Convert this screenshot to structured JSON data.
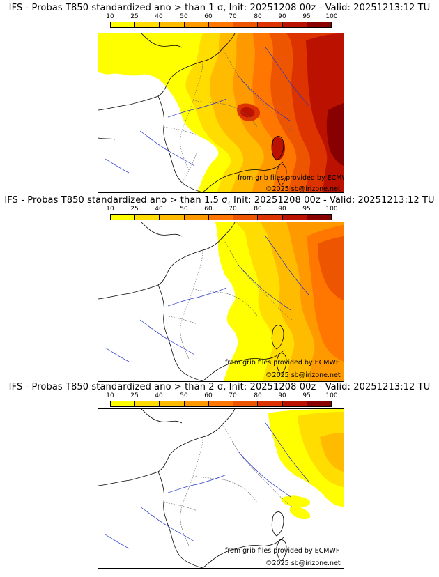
{
  "colors": {
    "levels": [
      "#ffff00",
      "#ffdd00",
      "#ffbb00",
      "#ff9900",
      "#ff7700",
      "#ee5500",
      "#dd3300",
      "#bb1100",
      "#880000",
      "#550000"
    ]
  },
  "panels": [
    {
      "title": "IFS - Probas T850  standardized ano > than 1 σ, Init: 20251208 00z - Valid: 20251213:12 TU",
      "legend_ticks": [
        "10",
        "25",
        "40",
        "50",
        "60",
        "70",
        "80",
        "90",
        "95",
        "100"
      ],
      "source_credit": "from grib files provided by ECMWF",
      "copyright": "©2025 sb@irizone.net"
    },
    {
      "title": "IFS - Probas T850  standardized ano > than 1.5 σ, Init: 20251208 00z - Valid: 20251213:12 TU",
      "legend_ticks": [
        "10",
        "25",
        "40",
        "50",
        "60",
        "70",
        "80",
        "90",
        "95",
        "100"
      ],
      "source_credit": "from grib files provided by ECMWF",
      "copyright": "©2025 sb@irizone.net"
    },
    {
      "title": "IFS - Probas T850  standardized ano > than 2 σ, Init: 20251208 00z - Valid: 20251213:12 TU",
      "legend_ticks": [
        "10",
        "25",
        "40",
        "50",
        "60",
        "70",
        "80",
        "90",
        "95",
        "100"
      ],
      "source_credit": "from grib files provided by ECMWF",
      "copyright": "©2025 sb@irizone.net"
    }
  ]
}
